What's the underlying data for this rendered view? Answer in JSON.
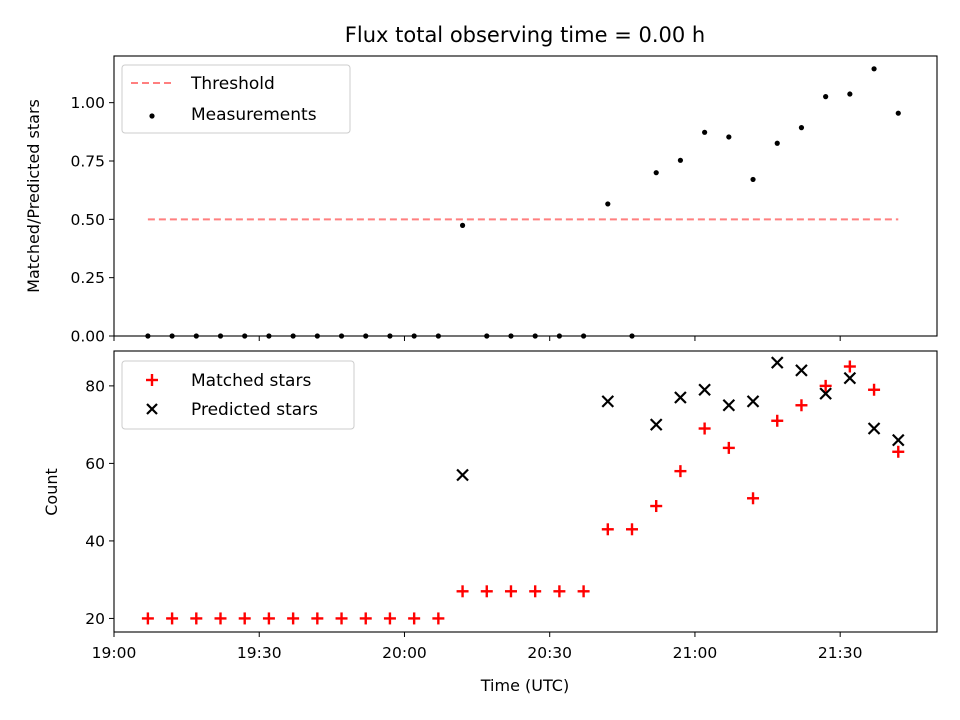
{
  "chart_data": [
    {
      "type": "scatter",
      "title": "Flux total observing time = 0.00 h",
      "ylabel": "Matched/Predicted stars",
      "xlabel": "",
      "xlim": [
        "19:00",
        "21:50"
      ],
      "ylim": [
        0,
        1.2
      ],
      "yticks": [
        "0.00",
        "0.25",
        "0.50",
        "0.75",
        "1.00"
      ],
      "legend_position": "top-left",
      "series": [
        {
          "name": "Threshold",
          "kind": "line",
          "style": "dashed",
          "color": "#ff7f7f",
          "x": [
            "19:07",
            "21:42"
          ],
          "y": [
            0.5,
            0.5
          ]
        },
        {
          "name": "Measurements",
          "kind": "points",
          "marker": "dot",
          "color": "#000000",
          "x": [
            "19:07",
            "19:12",
            "19:17",
            "19:22",
            "19:27",
            "19:32",
            "19:37",
            "19:42",
            "19:47",
            "19:52",
            "19:57",
            "20:02",
            "20:07",
            "20:12",
            "20:17",
            "20:22",
            "20:27",
            "20:32",
            "20:37",
            "20:42",
            "20:47",
            "20:52",
            "20:57",
            "21:02",
            "21:07",
            "21:12",
            "21:17",
            "21:22",
            "21:27",
            "21:32",
            "21:37",
            "21:42"
          ],
          "y": [
            0,
            0,
            0,
            0,
            0,
            0,
            0,
            0,
            0,
            0,
            0,
            0,
            0,
            0.474,
            0,
            0,
            0,
            0,
            0,
            0.566,
            0,
            0.7,
            0.753,
            0.873,
            0.853,
            0.671,
            0.826,
            0.893,
            1.026,
            1.037,
            1.145,
            0.955
          ]
        }
      ]
    },
    {
      "type": "scatter",
      "title": "",
      "ylabel": "Count",
      "xlabel": "Time (UTC)",
      "xlim": [
        "19:00",
        "21:50"
      ],
      "ylim": [
        16.5,
        89
      ],
      "xticks": [
        "19:00",
        "19:30",
        "20:00",
        "20:30",
        "21:00",
        "21:30"
      ],
      "yticks": [
        "20",
        "40",
        "60",
        "80"
      ],
      "legend_position": "top-left",
      "series": [
        {
          "name": "Matched stars",
          "kind": "points",
          "marker": "plus",
          "color": "#ff0000",
          "x": [
            "19:07",
            "19:12",
            "19:17",
            "19:22",
            "19:27",
            "19:32",
            "19:37",
            "19:42",
            "19:47",
            "19:52",
            "19:57",
            "20:02",
            "20:07",
            "20:12",
            "20:17",
            "20:22",
            "20:27",
            "20:32",
            "20:37",
            "20:42",
            "20:47",
            "20:52",
            "20:57",
            "21:02",
            "21:07",
            "21:12",
            "21:17",
            "21:22",
            "21:27",
            "21:32",
            "21:37",
            "21:42"
          ],
          "y": [
            20,
            20,
            20,
            20,
            20,
            20,
            20,
            20,
            20,
            20,
            20,
            20,
            20,
            27,
            27,
            27,
            27,
            27,
            27,
            43,
            43,
            49,
            58,
            69,
            64,
            51,
            71,
            75,
            80,
            85,
            79,
            63
          ]
        },
        {
          "name": "Predicted stars",
          "kind": "points",
          "marker": "x",
          "color": "#000000",
          "x": [
            "20:12",
            "20:42",
            "20:52",
            "20:57",
            "21:02",
            "21:07",
            "21:12",
            "21:17",
            "21:22",
            "21:27",
            "21:32",
            "21:37",
            "21:42"
          ],
          "y": [
            57,
            76,
            70,
            77,
            79,
            75,
            76,
            86,
            84,
            78,
            82,
            69,
            66
          ]
        }
      ]
    }
  ]
}
